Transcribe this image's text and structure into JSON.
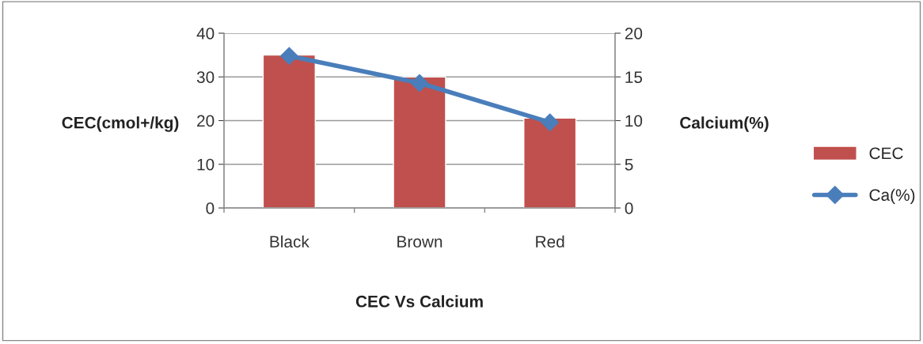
{
  "chart_data": {
    "type": "bar",
    "categories": [
      "Black",
      "Brown",
      "Red"
    ],
    "series": [
      {
        "name": "CEC",
        "color": "#c0504d",
        "values": [
          35,
          30,
          20.6
        ]
      },
      {
        "name": "Ca(%)",
        "type": "line",
        "axis": "y2",
        "color": "#4a7ebb",
        "marker": "diamond",
        "values": [
          17.4,
          14.3,
          9.8
        ]
      }
    ],
    "ylabel": "CEC(cmol+/kg)",
    "y2label": "Calcium(%)",
    "xlabel": "CEC Vs Calcium",
    "ylim": [
      0,
      40
    ],
    "yticks": [
      0,
      10,
      20,
      30,
      40
    ],
    "y2lim": [
      0,
      20
    ],
    "y2ticks": [
      0,
      5,
      10,
      15,
      20
    ],
    "grid": "y",
    "legend": "right"
  }
}
